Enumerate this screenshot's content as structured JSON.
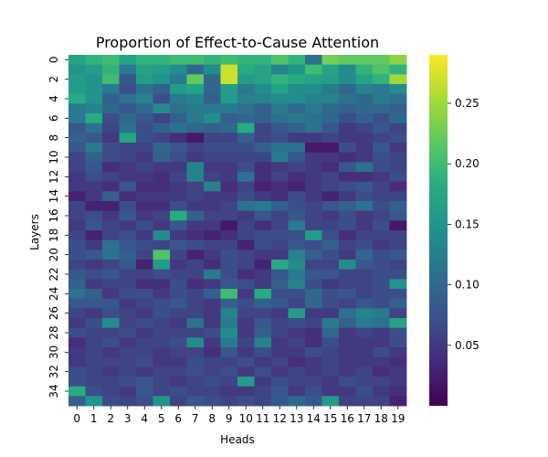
{
  "chart_data": {
    "type": "heatmap",
    "title": "Proportion of Effect-to-Cause Attention",
    "xlabel": "Heads",
    "ylabel": "Layers",
    "x_tick_labels": [
      "0",
      "1",
      "2",
      "3",
      "4",
      "5",
      "6",
      "7",
      "8",
      "9",
      "10",
      "11",
      "12",
      "13",
      "14",
      "15",
      "16",
      "17",
      "18",
      "19"
    ],
    "y_tick_labels": [
      "0",
      "2",
      "4",
      "6",
      "8",
      "10",
      "12",
      "14",
      "16",
      "18",
      "20",
      "22",
      "24",
      "26",
      "28",
      "30",
      "32",
      "34"
    ],
    "colormap": "viridis",
    "vmin": 0.0,
    "vmax": 0.29,
    "colorbar_ticks": [
      0.05,
      0.1,
      0.15,
      0.2,
      0.25
    ],
    "colorbar_tick_labels": [
      "0.05",
      "0.10",
      "0.15",
      "0.20",
      "0.25"
    ],
    "rows": 36,
    "cols": 20,
    "values": [
      [
        0.17,
        0.19,
        0.2,
        0.17,
        0.19,
        0.19,
        0.2,
        0.2,
        0.19,
        0.2,
        0.19,
        0.19,
        0.21,
        0.19,
        0.11,
        0.23,
        0.22,
        0.22,
        0.22,
        0.24
      ],
      [
        0.15,
        0.16,
        0.19,
        0.12,
        0.17,
        0.16,
        0.14,
        0.1,
        0.14,
        0.27,
        0.18,
        0.17,
        0.13,
        0.15,
        0.2,
        0.17,
        0.14,
        0.19,
        0.21,
        0.19
      ],
      [
        0.16,
        0.15,
        0.2,
        0.08,
        0.16,
        0.15,
        0.12,
        0.22,
        0.1,
        0.27,
        0.16,
        0.17,
        0.19,
        0.18,
        0.17,
        0.16,
        0.14,
        0.17,
        0.19,
        0.25
      ],
      [
        0.16,
        0.15,
        0.12,
        0.07,
        0.11,
        0.09,
        0.16,
        0.17,
        0.1,
        0.16,
        0.12,
        0.14,
        0.17,
        0.14,
        0.14,
        0.12,
        0.1,
        0.13,
        0.12,
        0.14
      ],
      [
        0.18,
        0.15,
        0.09,
        0.11,
        0.13,
        0.07,
        0.12,
        0.13,
        0.09,
        0.16,
        0.13,
        0.13,
        0.14,
        0.14,
        0.13,
        0.13,
        0.11,
        0.1,
        0.12,
        0.11
      ],
      [
        0.12,
        0.13,
        0.1,
        0.08,
        0.1,
        0.14,
        0.11,
        0.12,
        0.12,
        0.12,
        0.11,
        0.09,
        0.12,
        0.1,
        0.12,
        0.1,
        0.09,
        0.1,
        0.1,
        0.09
      ],
      [
        0.12,
        0.18,
        0.07,
        0.1,
        0.08,
        0.06,
        0.09,
        0.12,
        0.14,
        0.09,
        0.1,
        0.09,
        0.11,
        0.12,
        0.11,
        0.1,
        0.07,
        0.09,
        0.07,
        0.1
      ],
      [
        0.08,
        0.11,
        0.06,
        0.11,
        0.07,
        0.09,
        0.11,
        0.1,
        0.09,
        0.1,
        0.18,
        0.06,
        0.08,
        0.09,
        0.11,
        0.08,
        0.05,
        0.06,
        0.08,
        0.06
      ],
      [
        0.09,
        0.08,
        0.05,
        0.17,
        0.07,
        0.06,
        0.04,
        0.02,
        0.06,
        0.06,
        0.09,
        0.06,
        0.07,
        0.05,
        0.05,
        0.06,
        0.05,
        0.05,
        0.06,
        0.07
      ],
      [
        0.08,
        0.12,
        0.07,
        0.06,
        0.06,
        0.1,
        0.08,
        0.06,
        0.07,
        0.07,
        0.07,
        0.09,
        0.11,
        0.11,
        0.02,
        0.02,
        0.07,
        0.05,
        0.08,
        0.05
      ],
      [
        0.06,
        0.09,
        0.07,
        0.06,
        0.05,
        0.09,
        0.07,
        0.05,
        0.06,
        0.06,
        0.06,
        0.06,
        0.12,
        0.08,
        0.05,
        0.05,
        0.04,
        0.05,
        0.07,
        0.06
      ],
      [
        0.06,
        0.08,
        0.04,
        0.05,
        0.06,
        0.05,
        0.05,
        0.13,
        0.05,
        0.05,
        0.07,
        0.04,
        0.05,
        0.06,
        0.05,
        0.04,
        0.08,
        0.11,
        0.07,
        0.06
      ],
      [
        0.05,
        0.07,
        0.06,
        0.05,
        0.05,
        0.04,
        0.06,
        0.13,
        0.06,
        0.05,
        0.11,
        0.04,
        0.06,
        0.04,
        0.05,
        0.06,
        0.04,
        0.04,
        0.05,
        0.07
      ],
      [
        0.05,
        0.05,
        0.04,
        0.08,
        0.04,
        0.04,
        0.05,
        0.06,
        0.13,
        0.04,
        0.06,
        0.03,
        0.04,
        0.03,
        0.05,
        0.06,
        0.07,
        0.08,
        0.06,
        0.04
      ],
      [
        0.03,
        0.05,
        0.09,
        0.04,
        0.05,
        0.05,
        0.05,
        0.06,
        0.05,
        0.05,
        0.07,
        0.05,
        0.04,
        0.07,
        0.05,
        0.03,
        0.05,
        0.07,
        0.06,
        0.06
      ],
      [
        0.06,
        0.03,
        0.03,
        0.07,
        0.04,
        0.04,
        0.07,
        0.05,
        0.05,
        0.06,
        0.11,
        0.12,
        0.09,
        0.07,
        0.06,
        0.08,
        0.09,
        0.11,
        0.07,
        0.09
      ],
      [
        0.06,
        0.07,
        0.05,
        0.08,
        0.05,
        0.06,
        0.18,
        0.09,
        0.06,
        0.06,
        0.05,
        0.08,
        0.06,
        0.08,
        0.06,
        0.05,
        0.07,
        0.05,
        0.06,
        0.08
      ],
      [
        0.05,
        0.08,
        0.06,
        0.05,
        0.07,
        0.05,
        0.08,
        0.05,
        0.05,
        0.02,
        0.06,
        0.04,
        0.06,
        0.12,
        0.06,
        0.06,
        0.07,
        0.05,
        0.07,
        0.02
      ],
      [
        0.06,
        0.03,
        0.06,
        0.07,
        0.05,
        0.14,
        0.05,
        0.04,
        0.03,
        0.04,
        0.06,
        0.07,
        0.07,
        0.07,
        0.16,
        0.07,
        0.04,
        0.06,
        0.06,
        0.06
      ],
      [
        0.07,
        0.05,
        0.11,
        0.08,
        0.07,
        0.06,
        0.08,
        0.07,
        0.06,
        0.06,
        0.03,
        0.07,
        0.06,
        0.08,
        0.07,
        0.09,
        0.06,
        0.07,
        0.05,
        0.06
      ],
      [
        0.07,
        0.08,
        0.11,
        0.09,
        0.06,
        0.21,
        0.06,
        0.03,
        0.05,
        0.07,
        0.06,
        0.05,
        0.05,
        0.13,
        0.09,
        0.07,
        0.05,
        0.1,
        0.07,
        0.08
      ],
      [
        0.06,
        0.05,
        0.06,
        0.08,
        0.03,
        0.16,
        0.05,
        0.06,
        0.04,
        0.07,
        0.06,
        0.03,
        0.18,
        0.14,
        0.06,
        0.06,
        0.14,
        0.08,
        0.07,
        0.06
      ],
      [
        0.08,
        0.07,
        0.08,
        0.06,
        0.06,
        0.07,
        0.06,
        0.06,
        0.12,
        0.07,
        0.04,
        0.05,
        0.08,
        0.12,
        0.08,
        0.08,
        0.06,
        0.06,
        0.07,
        0.07
      ],
      [
        0.09,
        0.05,
        0.06,
        0.06,
        0.04,
        0.04,
        0.07,
        0.04,
        0.05,
        0.08,
        0.07,
        0.05,
        0.09,
        0.13,
        0.07,
        0.05,
        0.06,
        0.06,
        0.07,
        0.15
      ],
      [
        0.11,
        0.09,
        0.05,
        0.07,
        0.07,
        0.05,
        0.07,
        0.06,
        0.09,
        0.2,
        0.05,
        0.18,
        0.07,
        0.07,
        0.1,
        0.07,
        0.08,
        0.06,
        0.07,
        0.07
      ],
      [
        0.08,
        0.08,
        0.08,
        0.05,
        0.06,
        0.07,
        0.08,
        0.06,
        0.05,
        0.09,
        0.07,
        0.09,
        0.08,
        0.06,
        0.1,
        0.07,
        0.06,
        0.08,
        0.07,
        0.09
      ],
      [
        0.06,
        0.05,
        0.07,
        0.06,
        0.05,
        0.07,
        0.06,
        0.06,
        0.05,
        0.13,
        0.06,
        0.06,
        0.05,
        0.16,
        0.05,
        0.05,
        0.11,
        0.13,
        0.12,
        0.06
      ],
      [
        0.05,
        0.07,
        0.14,
        0.06,
        0.07,
        0.06,
        0.05,
        0.11,
        0.05,
        0.12,
        0.05,
        0.08,
        0.06,
        0.07,
        0.06,
        0.12,
        0.09,
        0.12,
        0.11,
        0.17
      ],
      [
        0.07,
        0.06,
        0.06,
        0.07,
        0.05,
        0.06,
        0.06,
        0.06,
        0.07,
        0.14,
        0.05,
        0.09,
        0.06,
        0.05,
        0.04,
        0.1,
        0.05,
        0.06,
        0.05,
        0.07
      ],
      [
        0.04,
        0.06,
        0.07,
        0.05,
        0.06,
        0.06,
        0.07,
        0.14,
        0.05,
        0.12,
        0.06,
        0.13,
        0.05,
        0.06,
        0.04,
        0.07,
        0.05,
        0.05,
        0.05,
        0.07
      ],
      [
        0.05,
        0.06,
        0.05,
        0.06,
        0.06,
        0.05,
        0.06,
        0.06,
        0.04,
        0.08,
        0.05,
        0.07,
        0.05,
        0.05,
        0.07,
        0.06,
        0.05,
        0.05,
        0.07,
        0.05
      ],
      [
        0.05,
        0.06,
        0.06,
        0.06,
        0.07,
        0.05,
        0.05,
        0.07,
        0.06,
        0.06,
        0.07,
        0.05,
        0.06,
        0.04,
        0.05,
        0.06,
        0.05,
        0.05,
        0.05,
        0.04
      ],
      [
        0.07,
        0.06,
        0.05,
        0.06,
        0.05,
        0.06,
        0.06,
        0.07,
        0.06,
        0.07,
        0.05,
        0.07,
        0.05,
        0.06,
        0.05,
        0.06,
        0.05,
        0.06,
        0.04,
        0.05
      ],
      [
        0.07,
        0.06,
        0.06,
        0.07,
        0.08,
        0.06,
        0.05,
        0.06,
        0.07,
        0.06,
        0.16,
        0.05,
        0.07,
        0.06,
        0.06,
        0.05,
        0.07,
        0.06,
        0.06,
        0.05
      ],
      [
        0.18,
        0.07,
        0.06,
        0.05,
        0.08,
        0.06,
        0.07,
        0.06,
        0.06,
        0.05,
        0.05,
        0.06,
        0.08,
        0.05,
        0.07,
        0.05,
        0.05,
        0.07,
        0.05,
        0.04
      ],
      [
        0.09,
        0.15,
        0.07,
        0.06,
        0.07,
        0.15,
        0.06,
        0.08,
        0.07,
        0.06,
        0.07,
        0.06,
        0.08,
        0.1,
        0.08,
        0.16,
        0.06,
        0.06,
        0.06,
        0.03
      ]
    ]
  }
}
